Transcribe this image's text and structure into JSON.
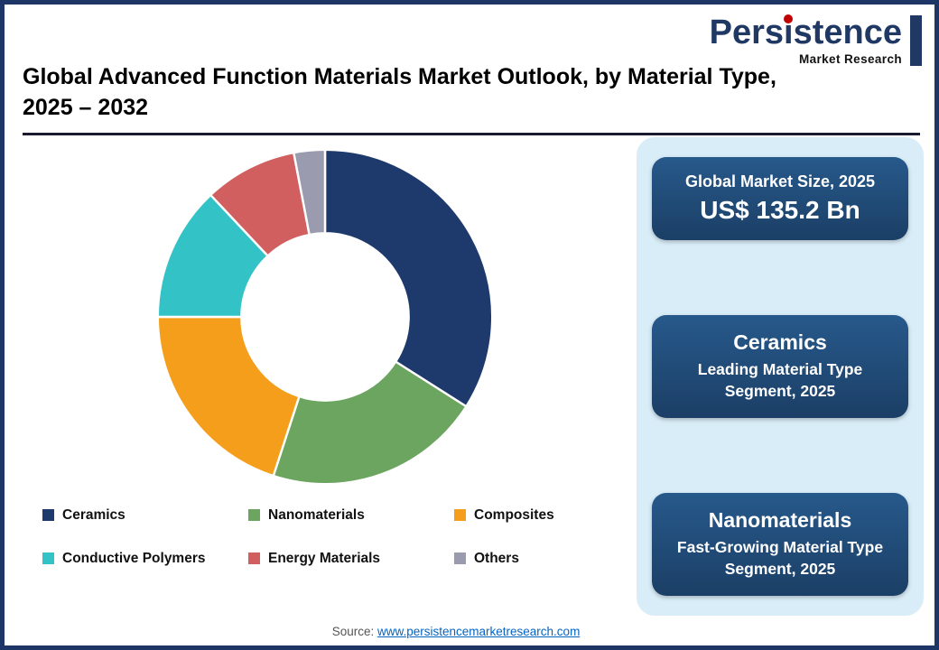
{
  "logo": {
    "name": "Persistence",
    "subtitle": "Market Research"
  },
  "header": {
    "title_line1": "Global Advanced Function Materials Market Outlook, by Material Type,",
    "title_line2": "2025 – 2032"
  },
  "chart_data": {
    "type": "pie",
    "variant": "donut",
    "title": "Global Advanced Function Materials Market Outlook, by Material Type, 2025 – 2032",
    "legend_position": "bottom",
    "start_angle_deg": -90,
    "inner_radius_ratio": 0.5,
    "series": [
      {
        "name": "Ceramics",
        "value": 34,
        "color": "#1e3a6d"
      },
      {
        "name": "Nanomaterials",
        "value": 21,
        "color": "#6ba55f"
      },
      {
        "name": "Composites",
        "value": 20,
        "color": "#f59e1b"
      },
      {
        "name": "Conductive Polymers",
        "value": 13,
        "color": "#33c3c7"
      },
      {
        "name": "Energy Materials",
        "value": 9,
        "color": "#d15f5f"
      },
      {
        "name": "Others",
        "value": 3,
        "color": "#9b9bb0"
      }
    ]
  },
  "sidebar": {
    "cards": [
      {
        "title": "Global Market Size, 2025",
        "value": "US$ 135.2 Bn"
      },
      {
        "title": "Ceramics",
        "subtitle": "Leading Material Type Segment, 2025"
      },
      {
        "title": "Nanomaterials",
        "subtitle": "Fast-Growing Material Type Segment, 2025"
      }
    ]
  },
  "footer": {
    "source_label": "Source:",
    "source_link_text": "www.persistencemarketresearch.com"
  }
}
